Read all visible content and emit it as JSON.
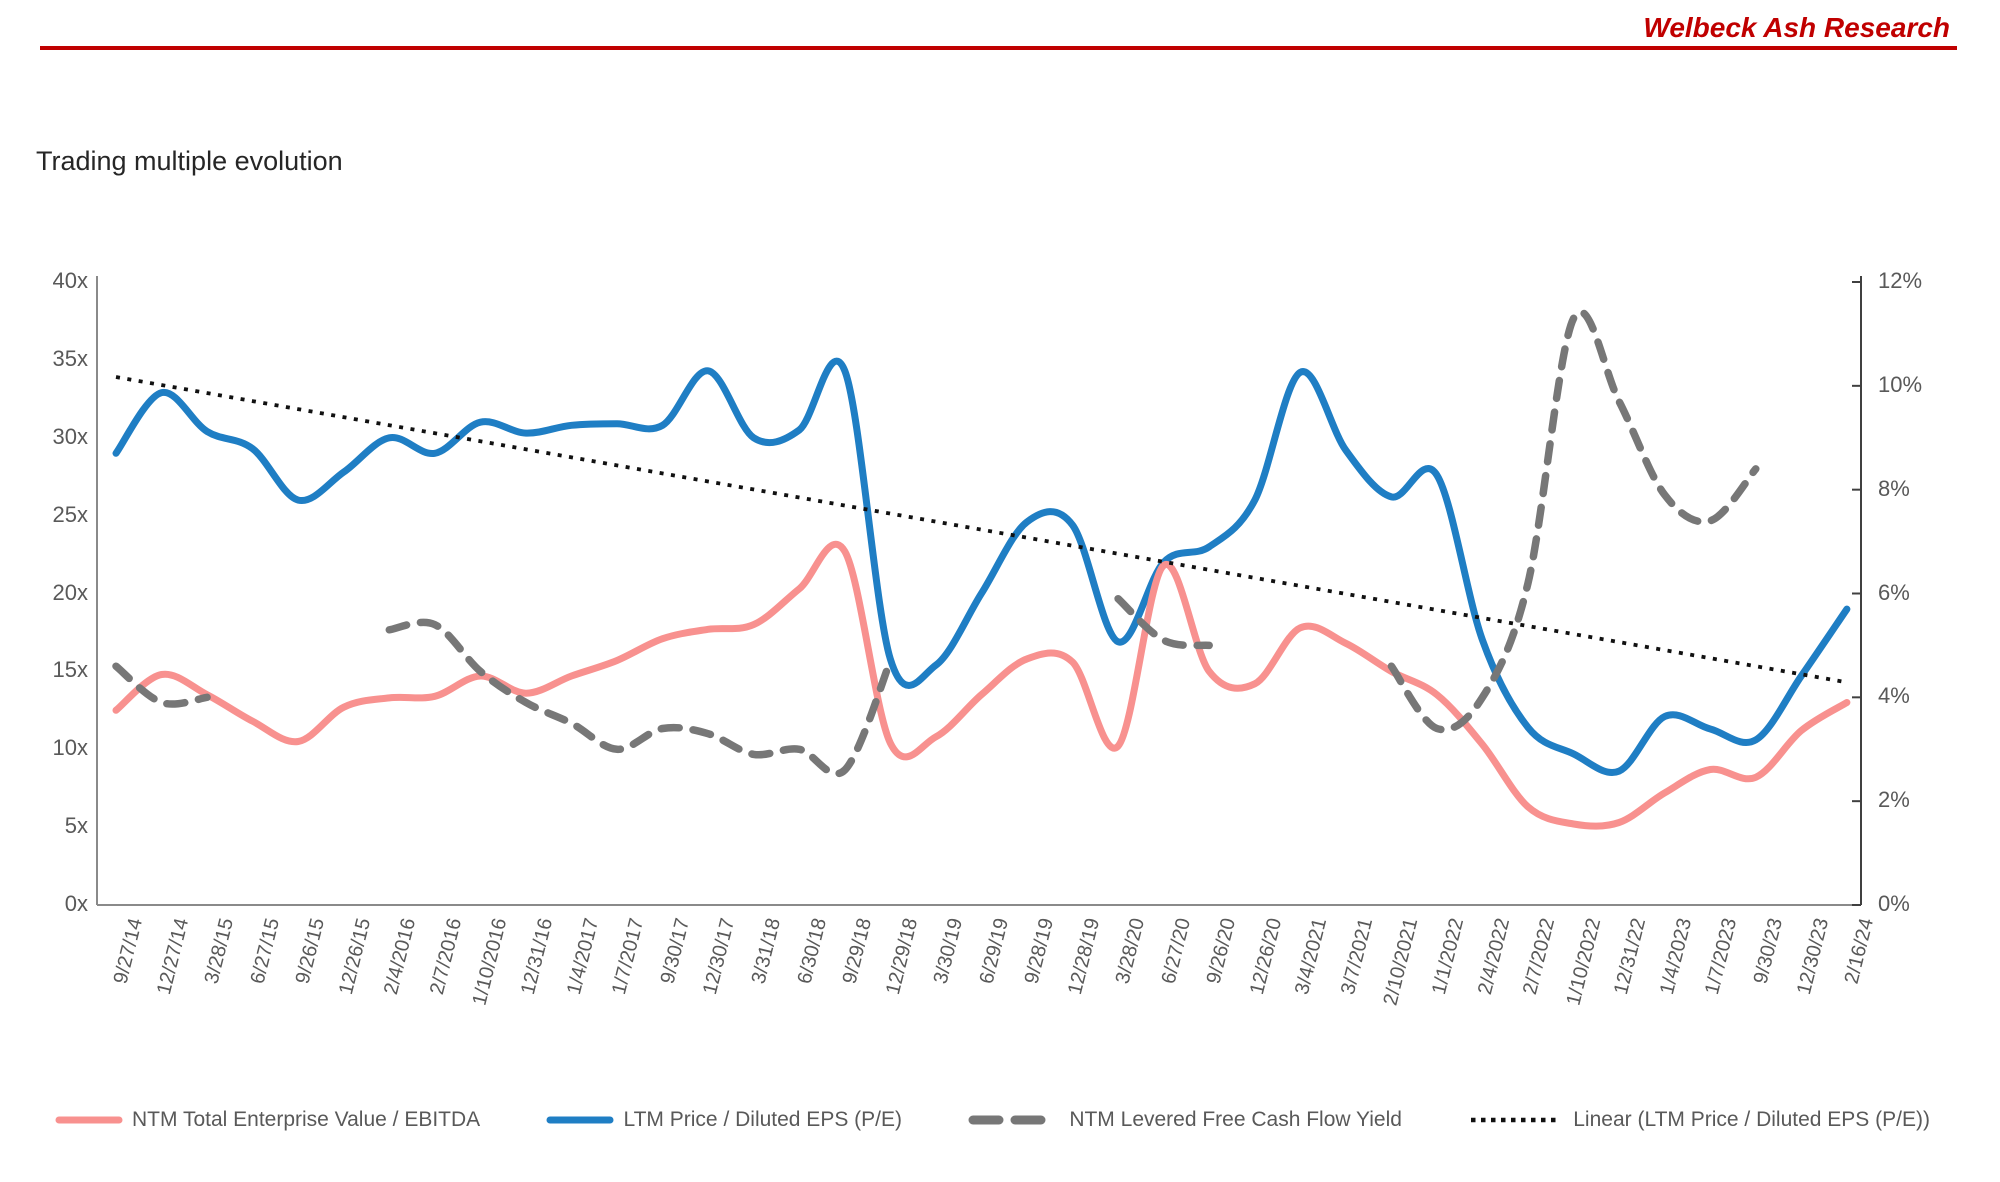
{
  "header": {
    "brand": "Welbeck Ash Research",
    "rule_color": "#C00000"
  },
  "chart": {
    "title": "Trading multiple evolution"
  },
  "colors": {
    "accent_red": "#C00000",
    "series_pink": "#F8918F",
    "series_blue": "#1F7EC4",
    "series_gray": "#777777",
    "trend_black": "#111111",
    "axis_text": "#595959"
  },
  "legend": {
    "items": [
      {
        "label": "NTM Total Enterprise Value / EBITDA",
        "swatch": "pink-solid-line"
      },
      {
        "label": "LTM Price / Diluted EPS (P/E)",
        "swatch": "blue-solid-line"
      },
      {
        "label": "NTM Levered Free Cash Flow Yield",
        "swatch": "gray-dashed-line"
      },
      {
        "label": "Linear (LTM Price / Diluted EPS (P/E))",
        "swatch": "black-dotted-line"
      }
    ]
  },
  "chart_data": {
    "type": "line",
    "title": "Trading multiple evolution",
    "grid": false,
    "legend_position": "bottom",
    "x_labels": [
      "9/27/14",
      "12/27/14",
      "3/28/15",
      "6/27/15",
      "9/26/15",
      "12/26/15",
      "2/4/2016",
      "2/7/2016",
      "1/10/2016",
      "12/31/16",
      "1/4/2017",
      "1/7/2017",
      "9/30/17",
      "12/30/17",
      "3/31/18",
      "6/30/18",
      "9/29/18",
      "12/29/18",
      "3/30/19",
      "6/29/19",
      "9/28/19",
      "12/28/19",
      "3/28/20",
      "6/27/20",
      "9/26/20",
      "12/26/20",
      "3/4/2021",
      "3/7/2021",
      "2/10/2021",
      "1/1/2022",
      "2/4/2022",
      "2/7/2022",
      "1/10/2022",
      "12/31/22",
      "1/4/2023",
      "1/7/2023",
      "9/30/23",
      "12/30/23",
      "2/16/24"
    ],
    "y_left": {
      "title": "",
      "unit": "x",
      "min": 0,
      "max": 40,
      "tick_labels": [
        "40x",
        "35x",
        "30x",
        "25x",
        "20x",
        "15x",
        "10x",
        "5x",
        "0x"
      ],
      "tick_values": [
        40,
        35,
        30,
        25,
        20,
        15,
        10,
        5,
        0
      ]
    },
    "y_right": {
      "title": "",
      "unit": "%",
      "min": 0,
      "max": 12,
      "tick_labels": [
        "12%",
        "10%",
        "8%",
        "6%",
        "4%",
        "2%",
        "0%"
      ],
      "tick_values": [
        12,
        10,
        8,
        6,
        4,
        2,
        0
      ]
    },
    "series": [
      {
        "name": "NTM Total Enterprise Value / EBITDA",
        "axis": "left",
        "style": "solid",
        "color": "#F8918F",
        "values": [
          12.5,
          14.8,
          13.5,
          11.8,
          10.5,
          12.7,
          13.3,
          13.4,
          14.7,
          13.6,
          14.7,
          15.7,
          17.1,
          17.7,
          18.0,
          20.3,
          22.7,
          10.4,
          10.8,
          13.5,
          15.8,
          15.6,
          10.2,
          21.8,
          15.0,
          14.2,
          17.8,
          16.8,
          15.0,
          13.5,
          10.3,
          6.3,
          5.2,
          5.3,
          7.2,
          8.7,
          8.2,
          11.2,
          13.0
        ]
      },
      {
        "name": "LTM Price / Diluted EPS (P/E)",
        "axis": "left",
        "style": "solid",
        "color": "#1F7EC4",
        "values": [
          29.0,
          32.9,
          30.4,
          29.3,
          26.0,
          27.8,
          30.0,
          29.0,
          31.0,
          30.3,
          30.8,
          30.9,
          30.8,
          34.3,
          30.0,
          30.5,
          34.3,
          15.8,
          15.4,
          20.0,
          24.6,
          24.4,
          16.9,
          22.0,
          23.0,
          26.0,
          34.2,
          29.2,
          26.2,
          27.6,
          17.0,
          11.4,
          9.7,
          8.6,
          12.1,
          11.3,
          10.6,
          14.7,
          19.0
        ]
      },
      {
        "name": "NTM Levered Free Cash Flow Yield",
        "axis": "right",
        "style": "dashed",
        "color": "#777777",
        "values": [
          4.6,
          3.9,
          4.0,
          null,
          null,
          null,
          5.3,
          5.4,
          4.5,
          3.9,
          3.5,
          3.0,
          3.4,
          3.3,
          2.9,
          3.0,
          2.6,
          4.7,
          null,
          null,
          null,
          null,
          5.9,
          5.1,
          5.0,
          null,
          null,
          null,
          4.6,
          3.4,
          4.0,
          6.2,
          11.3,
          9.7,
          7.9,
          7.4,
          8.4,
          null,
          null
        ]
      },
      {
        "name": "Linear (LTM Price / Diluted EPS (P/E))",
        "axis": "left",
        "style": "dotted",
        "color": "#111111",
        "trend": true,
        "trend_start": 33.9,
        "trend_end": 14.3
      }
    ]
  }
}
